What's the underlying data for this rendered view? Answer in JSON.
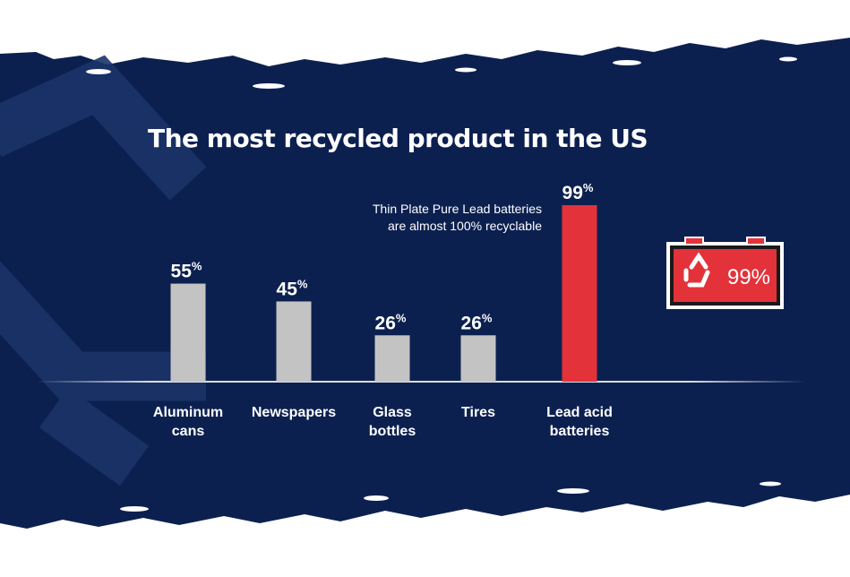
{
  "colors": {
    "background": "#0c2050",
    "accent": "#e4323a",
    "bar": "#c3c3c3",
    "text": "#ffffff"
  },
  "chart_data": {
    "type": "bar",
    "title": "The most recycled product in the US",
    "categories": [
      [
        "Aluminum",
        "cans"
      ],
      [
        "Newspapers"
      ],
      [
        "Glass",
        "bottles"
      ],
      [
        "Tires"
      ],
      [
        "Lead acid",
        "batteries"
      ]
    ],
    "values": [
      55,
      45,
      26,
      26,
      99
    ],
    "value_suffix": "%",
    "highlight_index": 4,
    "ylim": [
      0,
      100
    ],
    "grid": false
  },
  "annotation": {
    "line1": "Thin Plate Pure Lead batteries",
    "line2": "are almost 100% recyclable"
  },
  "badge": {
    "icon": "battery-recycle-icon",
    "text": "99%"
  }
}
